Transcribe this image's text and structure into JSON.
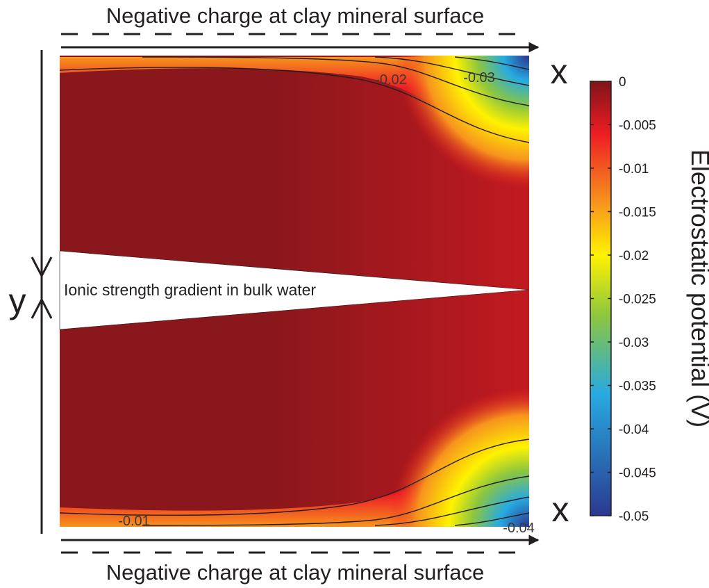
{
  "surface_label_top": "Negative charge at clay mineral surface",
  "surface_label_bottom": "Negative charge at clay mineral surface",
  "x_label_top": "x",
  "x_label_bottom": "x",
  "y_label": "y",
  "gradient_label": "Ionic strength gradient in bulk water",
  "colorbar": {
    "title": "Electrostatic potential (V)",
    "min": -0.05,
    "max": 0,
    "ticks": [
      {
        "value": 0,
        "label": "0"
      },
      {
        "value": -0.005,
        "label": "-0.005"
      },
      {
        "value": -0.01,
        "label": "-0.01"
      },
      {
        "value": -0.015,
        "label": "-0.015"
      },
      {
        "value": -0.02,
        "label": "-0.02"
      },
      {
        "value": -0.025,
        "label": "-0.025"
      },
      {
        "value": -0.03,
        "label": "-0.03"
      },
      {
        "value": -0.035,
        "label": "-0.035"
      },
      {
        "value": -0.04,
        "label": "-0.04"
      },
      {
        "value": -0.045,
        "label": "-0.045"
      },
      {
        "value": -0.05,
        "label": "-0.05"
      }
    ],
    "colors": {
      "c0": "#7f1418",
      "c1": "#ed1c24",
      "c2": "#f7941d",
      "c3": "#fff200",
      "c4": "#8dc63f",
      "c5": "#27aae1",
      "c6": "#2b3990"
    }
  },
  "contour_labels": {
    "top_a": "-0.02",
    "top_b": "-0.03",
    "bottom_a": "-0.01",
    "bottom_b": "-0.04"
  }
}
